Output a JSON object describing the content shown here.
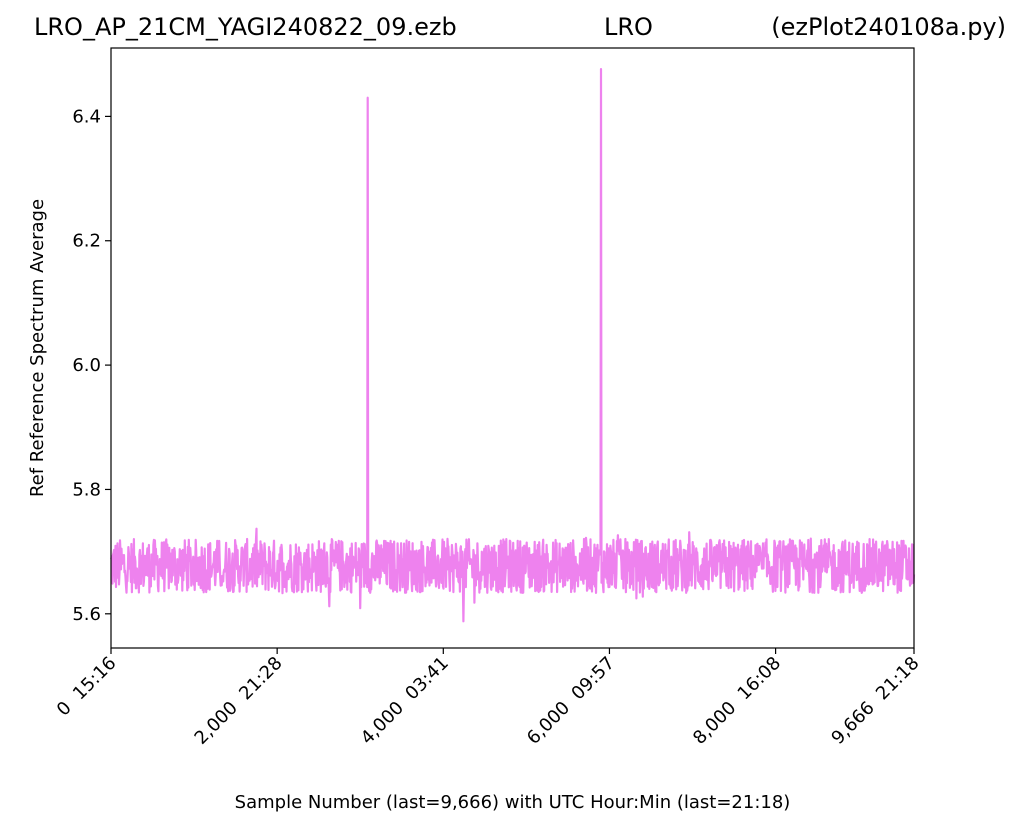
{
  "header": {
    "left": "LRO_AP_21CM_YAGI240822_09.ezb",
    "center": "LRO",
    "right": "(ezPlot240108a.py)"
  },
  "chart_data": {
    "type": "line",
    "title": "",
    "xlabel": "Sample Number (last=9,666) with UTC Hour:Min (last=21:18)",
    "ylabel": "Ref Reference Spectrum Average",
    "xlim": [
      0,
      9666
    ],
    "ylim": [
      5.545,
      6.51
    ],
    "grid": false,
    "legend": "none",
    "line_color": "#ee82ee",
    "x_ticks": [
      {
        "value": 0,
        "label": "0  15:16"
      },
      {
        "value": 2000,
        "label": "2,000  21:28"
      },
      {
        "value": 4000,
        "label": "4,000  03:41"
      },
      {
        "value": 6000,
        "label": "6,000  09:57"
      },
      {
        "value": 8000,
        "label": "8,000  16:08"
      },
      {
        "value": 9666,
        "label": "9,666  21:18"
      }
    ],
    "y_ticks": [
      {
        "value": 5.6,
        "label": "5.6"
      },
      {
        "value": 5.8,
        "label": "5.8"
      },
      {
        "value": 6.0,
        "label": "6.0"
      },
      {
        "value": 6.2,
        "label": "6.2"
      },
      {
        "value": 6.4,
        "label": "6.4"
      }
    ],
    "noise_band": {
      "low": 5.633,
      "high": 5.72,
      "center": 5.677
    },
    "spikes": [
      {
        "x": 3090,
        "y": 6.43
      },
      {
        "x": 5900,
        "y": 6.476
      },
      {
        "x": 4240,
        "y": 5.588
      },
      {
        "x": 3000,
        "y": 5.609
      },
      {
        "x": 2630,
        "y": 5.612
      }
    ]
  }
}
